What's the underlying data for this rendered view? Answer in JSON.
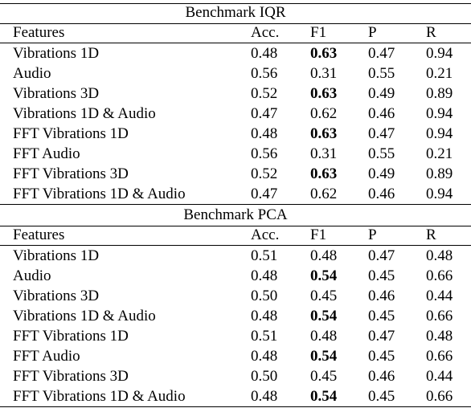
{
  "sections": [
    {
      "title": "Benchmark IQR",
      "header": [
        "Features",
        "Acc.",
        "F1",
        "P",
        "R"
      ],
      "rows": [
        [
          "Vibrations 1D",
          "0.48",
          "0.63",
          "0.47",
          "0.94"
        ],
        [
          "Audio",
          "0.56",
          "0.31",
          "0.55",
          "0.21"
        ],
        [
          "Vibrations 3D",
          "0.52",
          "0.63",
          "0.49",
          "0.89"
        ],
        [
          "Vibrations 1D & Audio",
          "0.47",
          "0.62",
          "0.46",
          "0.94"
        ],
        [
          "FFT Vibrations 1D",
          "0.48",
          "0.63",
          "0.47",
          "0.94"
        ],
        [
          "FFT Audio",
          "0.56",
          "0.31",
          "0.55",
          "0.21"
        ],
        [
          "FFT Vibrations 3D",
          "0.52",
          "0.63",
          "0.49",
          "0.89"
        ],
        [
          "FFT Vibrations 1D & Audio",
          "0.47",
          "0.62",
          "0.46",
          "0.94"
        ]
      ],
      "bold": [
        [
          0,
          2
        ],
        [
          2,
          2
        ],
        [
          4,
          2
        ],
        [
          6,
          2
        ]
      ]
    },
    {
      "title": "Benchmark PCA",
      "header": [
        "Features",
        "Acc.",
        "F1",
        "P",
        "R"
      ],
      "rows": [
        [
          "Vibrations 1D",
          "0.51",
          "0.48",
          "0.47",
          "0.48"
        ],
        [
          "Audio",
          "0.48",
          "0.54",
          "0.45",
          "0.66"
        ],
        [
          "Vibrations 3D",
          "0.50",
          "0.45",
          "0.46",
          "0.44"
        ],
        [
          "Vibrations 1D & Audio",
          "0.48",
          "0.54",
          "0.45",
          "0.66"
        ],
        [
          "FFT Vibrations 1D",
          "0.51",
          "0.48",
          "0.47",
          "0.48"
        ],
        [
          "FFT Audio",
          "0.48",
          "0.54",
          "0.45",
          "0.66"
        ],
        [
          "FFT Vibrations 3D",
          "0.50",
          "0.45",
          "0.46",
          "0.44"
        ],
        [
          "FFT Vibrations 1D & Audio",
          "0.48",
          "0.54",
          "0.45",
          "0.66"
        ]
      ],
      "bold": [
        [
          1,
          2
        ],
        [
          3,
          2
        ],
        [
          5,
          2
        ],
        [
          7,
          2
        ]
      ]
    }
  ]
}
